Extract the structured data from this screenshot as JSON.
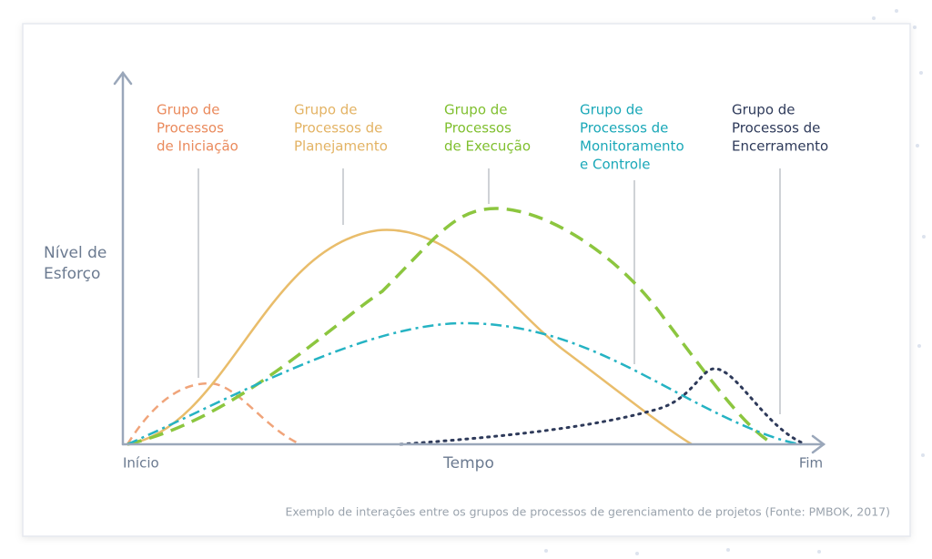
{
  "y_axis_label": [
    "Nível de",
    "Esforço"
  ],
  "x_axis_label": "Tempo",
  "x_start": "Início",
  "x_end": "Fim",
  "groups": [
    {
      "lines": [
        "Grupo de",
        "Processos",
        "de Iniciação"
      ]
    },
    {
      "lines": [
        "Grupo de",
        "Processos de",
        "Planejamento"
      ]
    },
    {
      "lines": [
        "Grupo de",
        "Processos",
        "de Execução"
      ]
    },
    {
      "lines": [
        "Grupo de",
        "Processos de",
        "Monitoramento",
        "e Controle"
      ]
    },
    {
      "lines": [
        "Grupo de",
        "Processos de",
        "Encerramento"
      ]
    }
  ],
  "caption": "Exemplo de interações entre os grupos de processos de gerenciamento de projetos (Fonte: PMBOK, 2017)"
}
